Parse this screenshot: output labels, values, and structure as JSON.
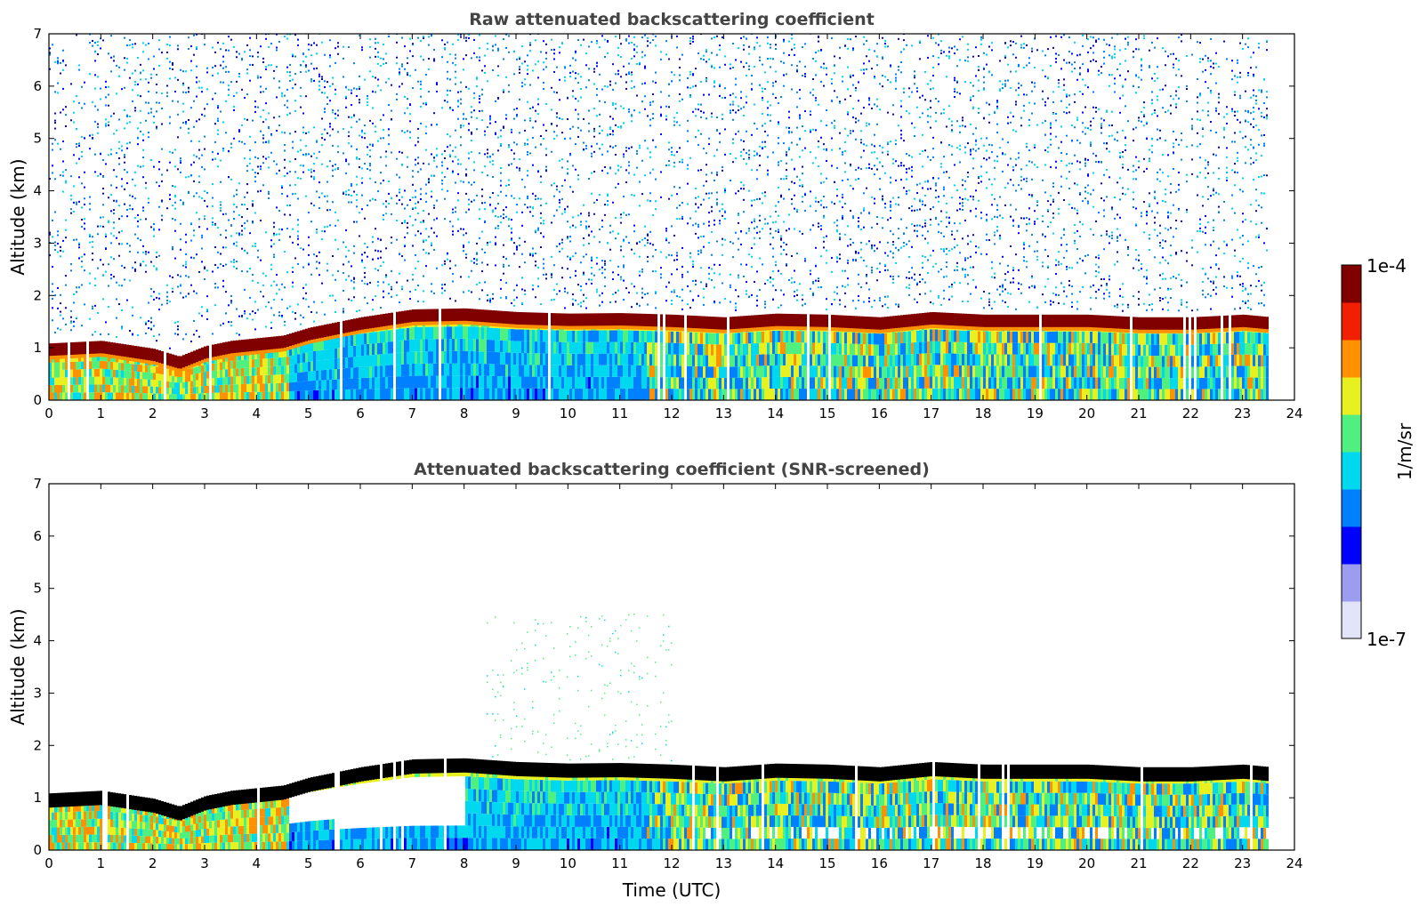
{
  "chart_data": [
    {
      "type": "heatmap",
      "title": "Raw attenuated backscattering coefficient",
      "xlabel": "",
      "ylabel": "Altitude (km)",
      "xlim": [
        0,
        24
      ],
      "ylim": [
        0,
        7
      ],
      "x_ticks": [
        "0",
        "1",
        "2",
        "3",
        "4",
        "5",
        "6",
        "7",
        "8",
        "9",
        "10",
        "11",
        "12",
        "13",
        "14",
        "15",
        "16",
        "17",
        "18",
        "19",
        "20",
        "21",
        "22",
        "23",
        "24"
      ],
      "y_ticks": [
        "0",
        "1",
        "2",
        "3",
        "4",
        "5",
        "6",
        "7"
      ],
      "data_end_time": 23.55,
      "layer_top_km": [
        [
          0,
          1.05
        ],
        [
          1,
          1.1
        ],
        [
          2,
          0.95
        ],
        [
          2.5,
          0.8
        ],
        [
          3,
          1.0
        ],
        [
          3.5,
          1.1
        ],
        [
          4.5,
          1.2
        ],
        [
          5,
          1.35
        ],
        [
          6,
          1.55
        ],
        [
          7,
          1.7
        ],
        [
          8,
          1.72
        ],
        [
          9,
          1.65
        ],
        [
          10,
          1.62
        ],
        [
          11,
          1.63
        ],
        [
          12,
          1.6
        ],
        [
          13,
          1.55
        ],
        [
          14,
          1.62
        ],
        [
          15,
          1.6
        ],
        [
          16,
          1.55
        ],
        [
          17,
          1.65
        ],
        [
          18,
          1.6
        ],
        [
          19,
          1.6
        ],
        [
          20,
          1.6
        ],
        [
          21,
          1.55
        ],
        [
          22,
          1.55
        ],
        [
          23,
          1.6
        ],
        [
          23.55,
          1.55
        ]
      ]
    },
    {
      "type": "heatmap",
      "title": "Attenuated backscattering coefficient (SNR-screened)",
      "xlabel": "Time (UTC)",
      "ylabel": "Altitude (km)",
      "xlim": [
        0,
        24
      ],
      "ylim": [
        0,
        7
      ],
      "x_ticks": [
        "0",
        "1",
        "2",
        "3",
        "4",
        "5",
        "6",
        "7",
        "8",
        "9",
        "10",
        "11",
        "12",
        "13",
        "14",
        "15",
        "16",
        "17",
        "18",
        "19",
        "20",
        "21",
        "22",
        "23",
        "24"
      ],
      "y_ticks": [
        "0",
        "1",
        "2",
        "3",
        "4",
        "5",
        "6",
        "7"
      ],
      "data_end_time": 23.55,
      "layer_top_km": [
        [
          0,
          1.05
        ],
        [
          1,
          1.1
        ],
        [
          2,
          0.95
        ],
        [
          2.5,
          0.8
        ],
        [
          3,
          1.0
        ],
        [
          3.5,
          1.1
        ],
        [
          4.5,
          1.2
        ],
        [
          5,
          1.35
        ],
        [
          6,
          1.55
        ],
        [
          7,
          1.7
        ],
        [
          8,
          1.72
        ],
        [
          9,
          1.65
        ],
        [
          10,
          1.62
        ],
        [
          11,
          1.63
        ],
        [
          12,
          1.6
        ],
        [
          13,
          1.55
        ],
        [
          14,
          1.62
        ],
        [
          15,
          1.6
        ],
        [
          16,
          1.55
        ],
        [
          17,
          1.65
        ],
        [
          18,
          1.6
        ],
        [
          19,
          1.6
        ],
        [
          20,
          1.6
        ],
        [
          21,
          1.55
        ],
        [
          22,
          1.55
        ],
        [
          23,
          1.6
        ],
        [
          23.55,
          1.55
        ]
      ]
    }
  ],
  "colorbar": {
    "max_label": "1e-4",
    "min_label": "1e-7",
    "unit_label": "1/m/sr",
    "colors": [
      "#e4e4f8",
      "#9c9cf0",
      "#0000ff",
      "#0080ff",
      "#00d8f0",
      "#50f080",
      "#e8f020",
      "#ff9000",
      "#f02000",
      "#800000"
    ]
  }
}
